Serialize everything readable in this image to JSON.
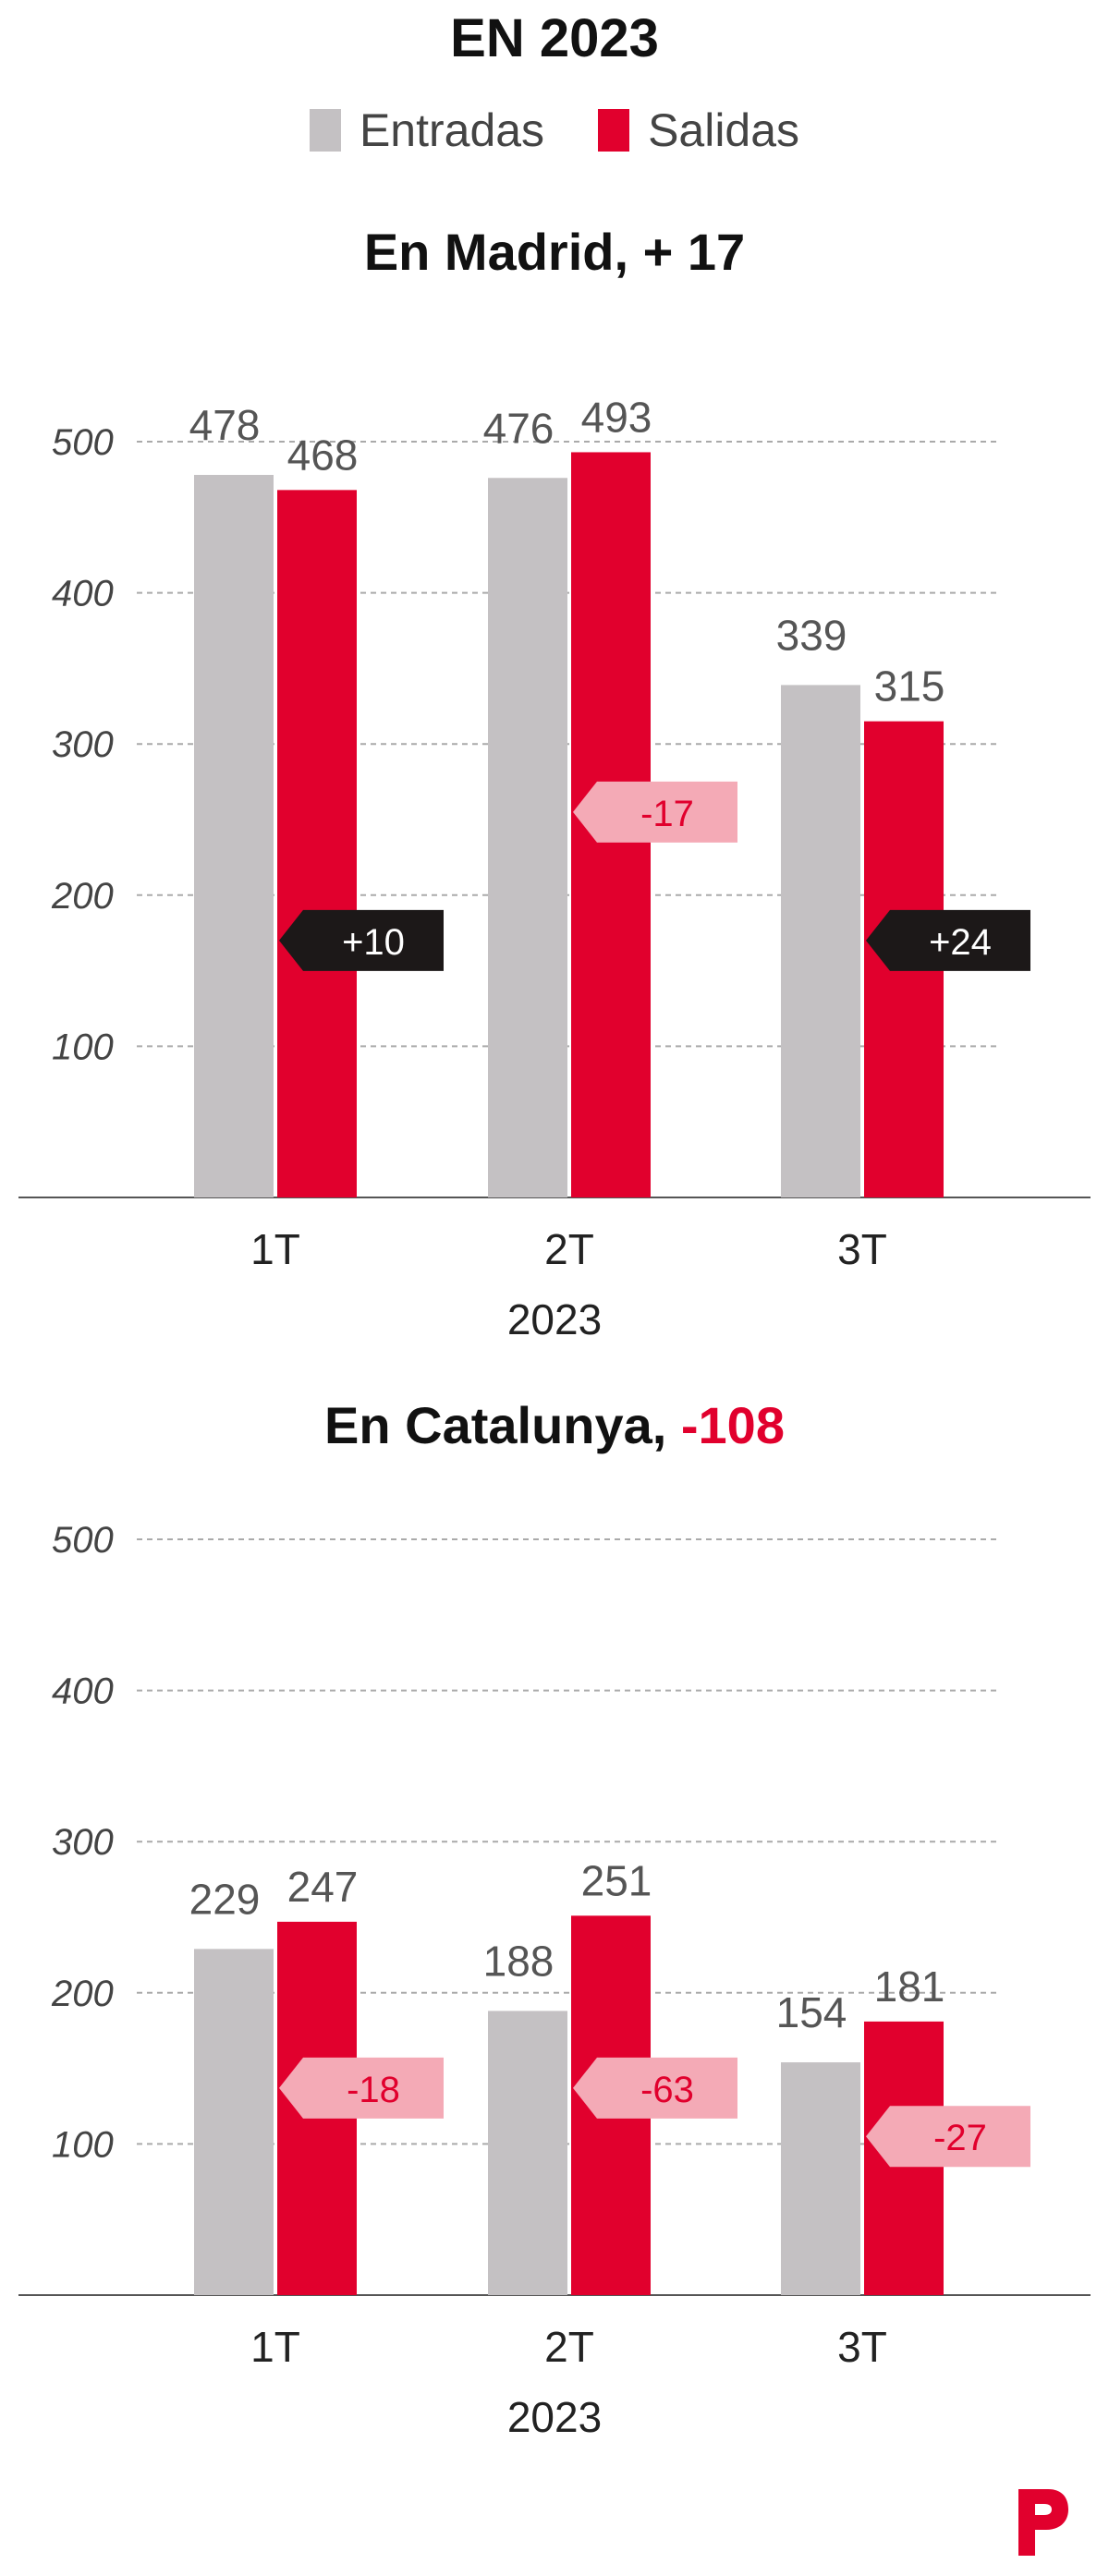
{
  "header": {
    "title": "EN 2023",
    "legend": [
      {
        "label": "Entradas",
        "color": "#c4c1c3"
      },
      {
        "label": "Salidas",
        "color": "#e1002d"
      }
    ]
  },
  "colors": {
    "entradas": "#c4c1c3",
    "salidas": "#e1002d",
    "positive_tag": "#1c1818",
    "negative_tag": "#f4aab6",
    "negative_text": "#e1002d"
  },
  "chart_data": [
    {
      "type": "bar",
      "title": "En Madrid,",
      "title_value": "+ 17",
      "categories": [
        "1T",
        "2T",
        "3T"
      ],
      "xlabel": "2023",
      "ylim": [
        0,
        500
      ],
      "yticks": [
        100,
        200,
        300,
        400,
        500
      ],
      "grid": "dashed",
      "series": [
        {
          "name": "Entradas",
          "values": [
            478,
            476,
            339
          ]
        },
        {
          "name": "Salidas",
          "values": [
            468,
            493,
            315
          ]
        }
      ],
      "differences": [
        {
          "label": "+10",
          "sign": "positive",
          "y": 170
        },
        {
          "label": "-17",
          "sign": "negative",
          "y": 255
        },
        {
          "label": "+24",
          "sign": "positive",
          "y": 170
        }
      ]
    },
    {
      "type": "bar",
      "title": "En Catalunya,",
      "title_value": "-108",
      "categories": [
        "1T",
        "2T",
        "3T"
      ],
      "xlabel": "2023",
      "ylim": [
        0,
        500
      ],
      "yticks": [
        100,
        200,
        300,
        400,
        500
      ],
      "grid": "dashed",
      "series": [
        {
          "name": "Entradas",
          "values": [
            229,
            188,
            154
          ]
        },
        {
          "name": "Salidas",
          "values": [
            247,
            251,
            181
          ]
        }
      ],
      "differences": [
        {
          "label": "-18",
          "sign": "negative",
          "y": 137
        },
        {
          "label": "-63",
          "sign": "negative",
          "y": 137
        },
        {
          "label": "-27",
          "sign": "negative",
          "y": 105
        }
      ]
    }
  ],
  "logo": {
    "name": "P"
  }
}
